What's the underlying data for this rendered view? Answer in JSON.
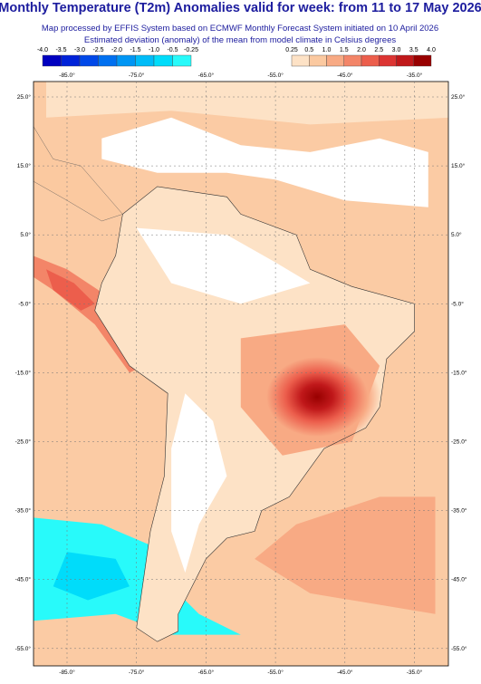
{
  "header": {
    "title": "Monthly Temperature (T2m) Anomalies valid for week: from 11 to 17 May 2026",
    "subtitle": "Map processed by EFFIS System based on ECMWF Monthly Forecast System initiated on 10 April 2026",
    "description": "Estimated deviation (anomaly) of the mean from model climate in Celsius degrees"
  },
  "legend": {
    "cold": {
      "labels": [
        "-4.0",
        "-3.5",
        "-3.0",
        "-2.5",
        "-2.0",
        "-1.5",
        "-1.0",
        "-0.5",
        "-0.25"
      ],
      "colors": [
        "#0000c0",
        "#0022d8",
        "#0048e8",
        "#0070f0",
        "#0096f4",
        "#00bcf8",
        "#00dcfa",
        "#28fafa"
      ]
    },
    "warm": {
      "labels": [
        "0.25",
        "0.5",
        "1.0",
        "1.5",
        "2.0",
        "2.5",
        "3.0",
        "3.5",
        "4.0"
      ],
      "colors": [
        "#fde2c6",
        "#fbc9a0",
        "#f8aa84",
        "#f38568",
        "#ec5e4c",
        "#dc3432",
        "#c0181a",
        "#980000"
      ]
    }
  },
  "map": {
    "lon_labels": [
      "-85.0°",
      "-75.0°",
      "-65.0°",
      "-55.0°",
      "-45.0°",
      "-35.0°"
    ],
    "lat_labels": [
      "25.0°",
      "15.0°",
      "5.0°",
      "-5.0°",
      "-15.0°",
      "-25.0°",
      "-35.0°",
      "-45.0°",
      "-55.0°"
    ]
  }
}
